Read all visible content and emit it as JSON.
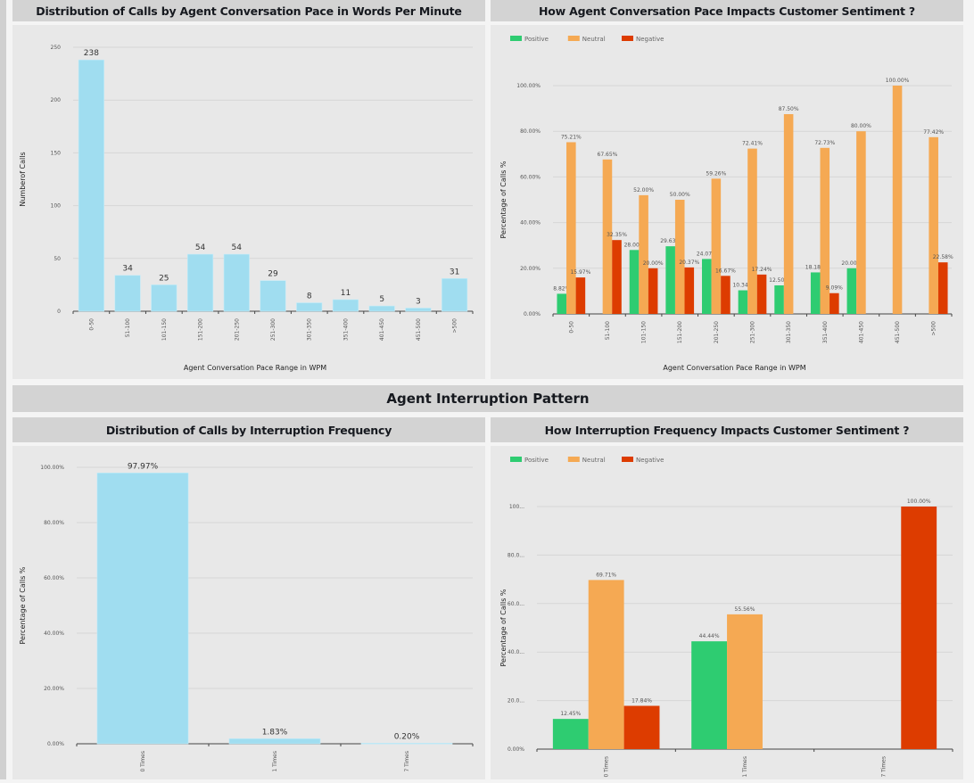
{
  "colors": {
    "bar": "#a0ddf0",
    "positive": "#2ecc71",
    "neutral": "#f5a953",
    "negative": "#dd3c00",
    "grid": "#d6d6d6",
    "axis": "#444444",
    "tick_text": "#555555",
    "label_text": "#333333"
  },
  "section_title": "Agent Interruption Pattern",
  "legend": [
    {
      "name": "Positive",
      "color_key": "positive"
    },
    {
      "name": "Neutral",
      "color_key": "neutral"
    },
    {
      "name": "Negative",
      "color_key": "negative"
    }
  ],
  "chart_data": [
    {
      "id": "pace-distribution",
      "type": "bar",
      "title": "Distribution of Calls by Agent Conversation Pace in Words Per Minute",
      "xlabel": "Agent Conversation Pace Range in WPM",
      "ylabel": "Numberof Calls",
      "categories": [
        "0-50",
        "51-100",
        "101-150",
        "151-200",
        "201-250",
        "251-300",
        "301-350",
        "351-400",
        "401-450",
        "451-500",
        ">500"
      ],
      "values": [
        238,
        34,
        25,
        54,
        54,
        29,
        8,
        11,
        5,
        3,
        31
      ],
      "data_labels": [
        "238",
        "34",
        "25",
        "54",
        "54",
        "29",
        "8",
        "11",
        "5",
        "3",
        "31"
      ],
      "ylim": [
        0,
        250
      ],
      "yticks": [
        0,
        50,
        100,
        150,
        200,
        250
      ],
      "ytick_labels": [
        "0",
        "50",
        "100",
        "150",
        "200",
        "250"
      ],
      "grid": true,
      "legend": null
    },
    {
      "id": "pace-sentiment",
      "type": "bar",
      "title": "How Agent Conversation Pace Impacts Customer Sentiment ?",
      "xlabel": "Agent Conversation Pace Range in WPM",
      "ylabel": "Percentage of Calls %",
      "categories": [
        "0-50",
        "51-100",
        "101-150",
        "151-200",
        "201-250",
        "251-300",
        "301-350",
        "351-400",
        "401-450",
        "451-500",
        ">500"
      ],
      "series": [
        {
          "name": "Positive",
          "values": [
            8.82,
            null,
            28.0,
            29.63,
            24.07,
            10.34,
            12.5,
            18.18,
            20.0,
            null,
            null
          ]
        },
        {
          "name": "Neutral",
          "values": [
            75.21,
            67.65,
            52.0,
            50.0,
            59.26,
            72.41,
            87.5,
            72.73,
            80.0,
            100.0,
            77.42
          ]
        },
        {
          "name": "Negative",
          "values": [
            15.97,
            32.35,
            20.0,
            20.37,
            16.67,
            17.24,
            null,
            9.09,
            null,
            null,
            22.58
          ]
        }
      ],
      "ylim": [
        0,
        100
      ],
      "yticks": [
        0,
        20,
        40,
        60,
        80,
        100
      ],
      "ytick_labels": [
        "0.00%",
        "20.00%",
        "40.00%",
        "60.00%",
        "80.00%",
        "100.00%"
      ],
      "grid": true,
      "legend": "top-left"
    },
    {
      "id": "interruption-distribution",
      "type": "bar",
      "title": "Distribution of Calls by Interruption Frequency",
      "xlabel": "",
      "ylabel": "Percentage of Calls %",
      "categories": [
        "0 Times",
        "1 Times",
        "7 Times"
      ],
      "values": [
        97.97,
        1.83,
        0.2
      ],
      "data_labels": [
        "97.97%",
        "1.83%",
        "0.20%"
      ],
      "ylim": [
        0,
        100
      ],
      "yticks": [
        0,
        20,
        40,
        60,
        80,
        100
      ],
      "ytick_labels": [
        "0.00%",
        "20.00%",
        "40.00%",
        "60.00%",
        "80.00%",
        "100.00%"
      ],
      "grid": true,
      "legend": null
    },
    {
      "id": "interruption-sentiment",
      "type": "bar",
      "title": "How Interruption Frequency Impacts Customer Sentiment ?",
      "xlabel": "",
      "ylabel": "Percentage of Calls %",
      "categories": [
        "0 Times",
        "1 Times",
        "7 Times"
      ],
      "series": [
        {
          "name": "Positive",
          "values": [
            12.45,
            44.44,
            null
          ]
        },
        {
          "name": "Neutral",
          "values": [
            69.71,
            55.56,
            null
          ]
        },
        {
          "name": "Negative",
          "values": [
            17.84,
            null,
            100.0
          ]
        }
      ],
      "ylim": [
        0,
        100
      ],
      "yticks": [
        0,
        20,
        40,
        60,
        80,
        100
      ],
      "ytick_labels": [
        "0.00%",
        "20.0...",
        "40.0...",
        "60.0...",
        "80.0...",
        "100..."
      ],
      "grid": true,
      "legend": "top-left"
    }
  ]
}
